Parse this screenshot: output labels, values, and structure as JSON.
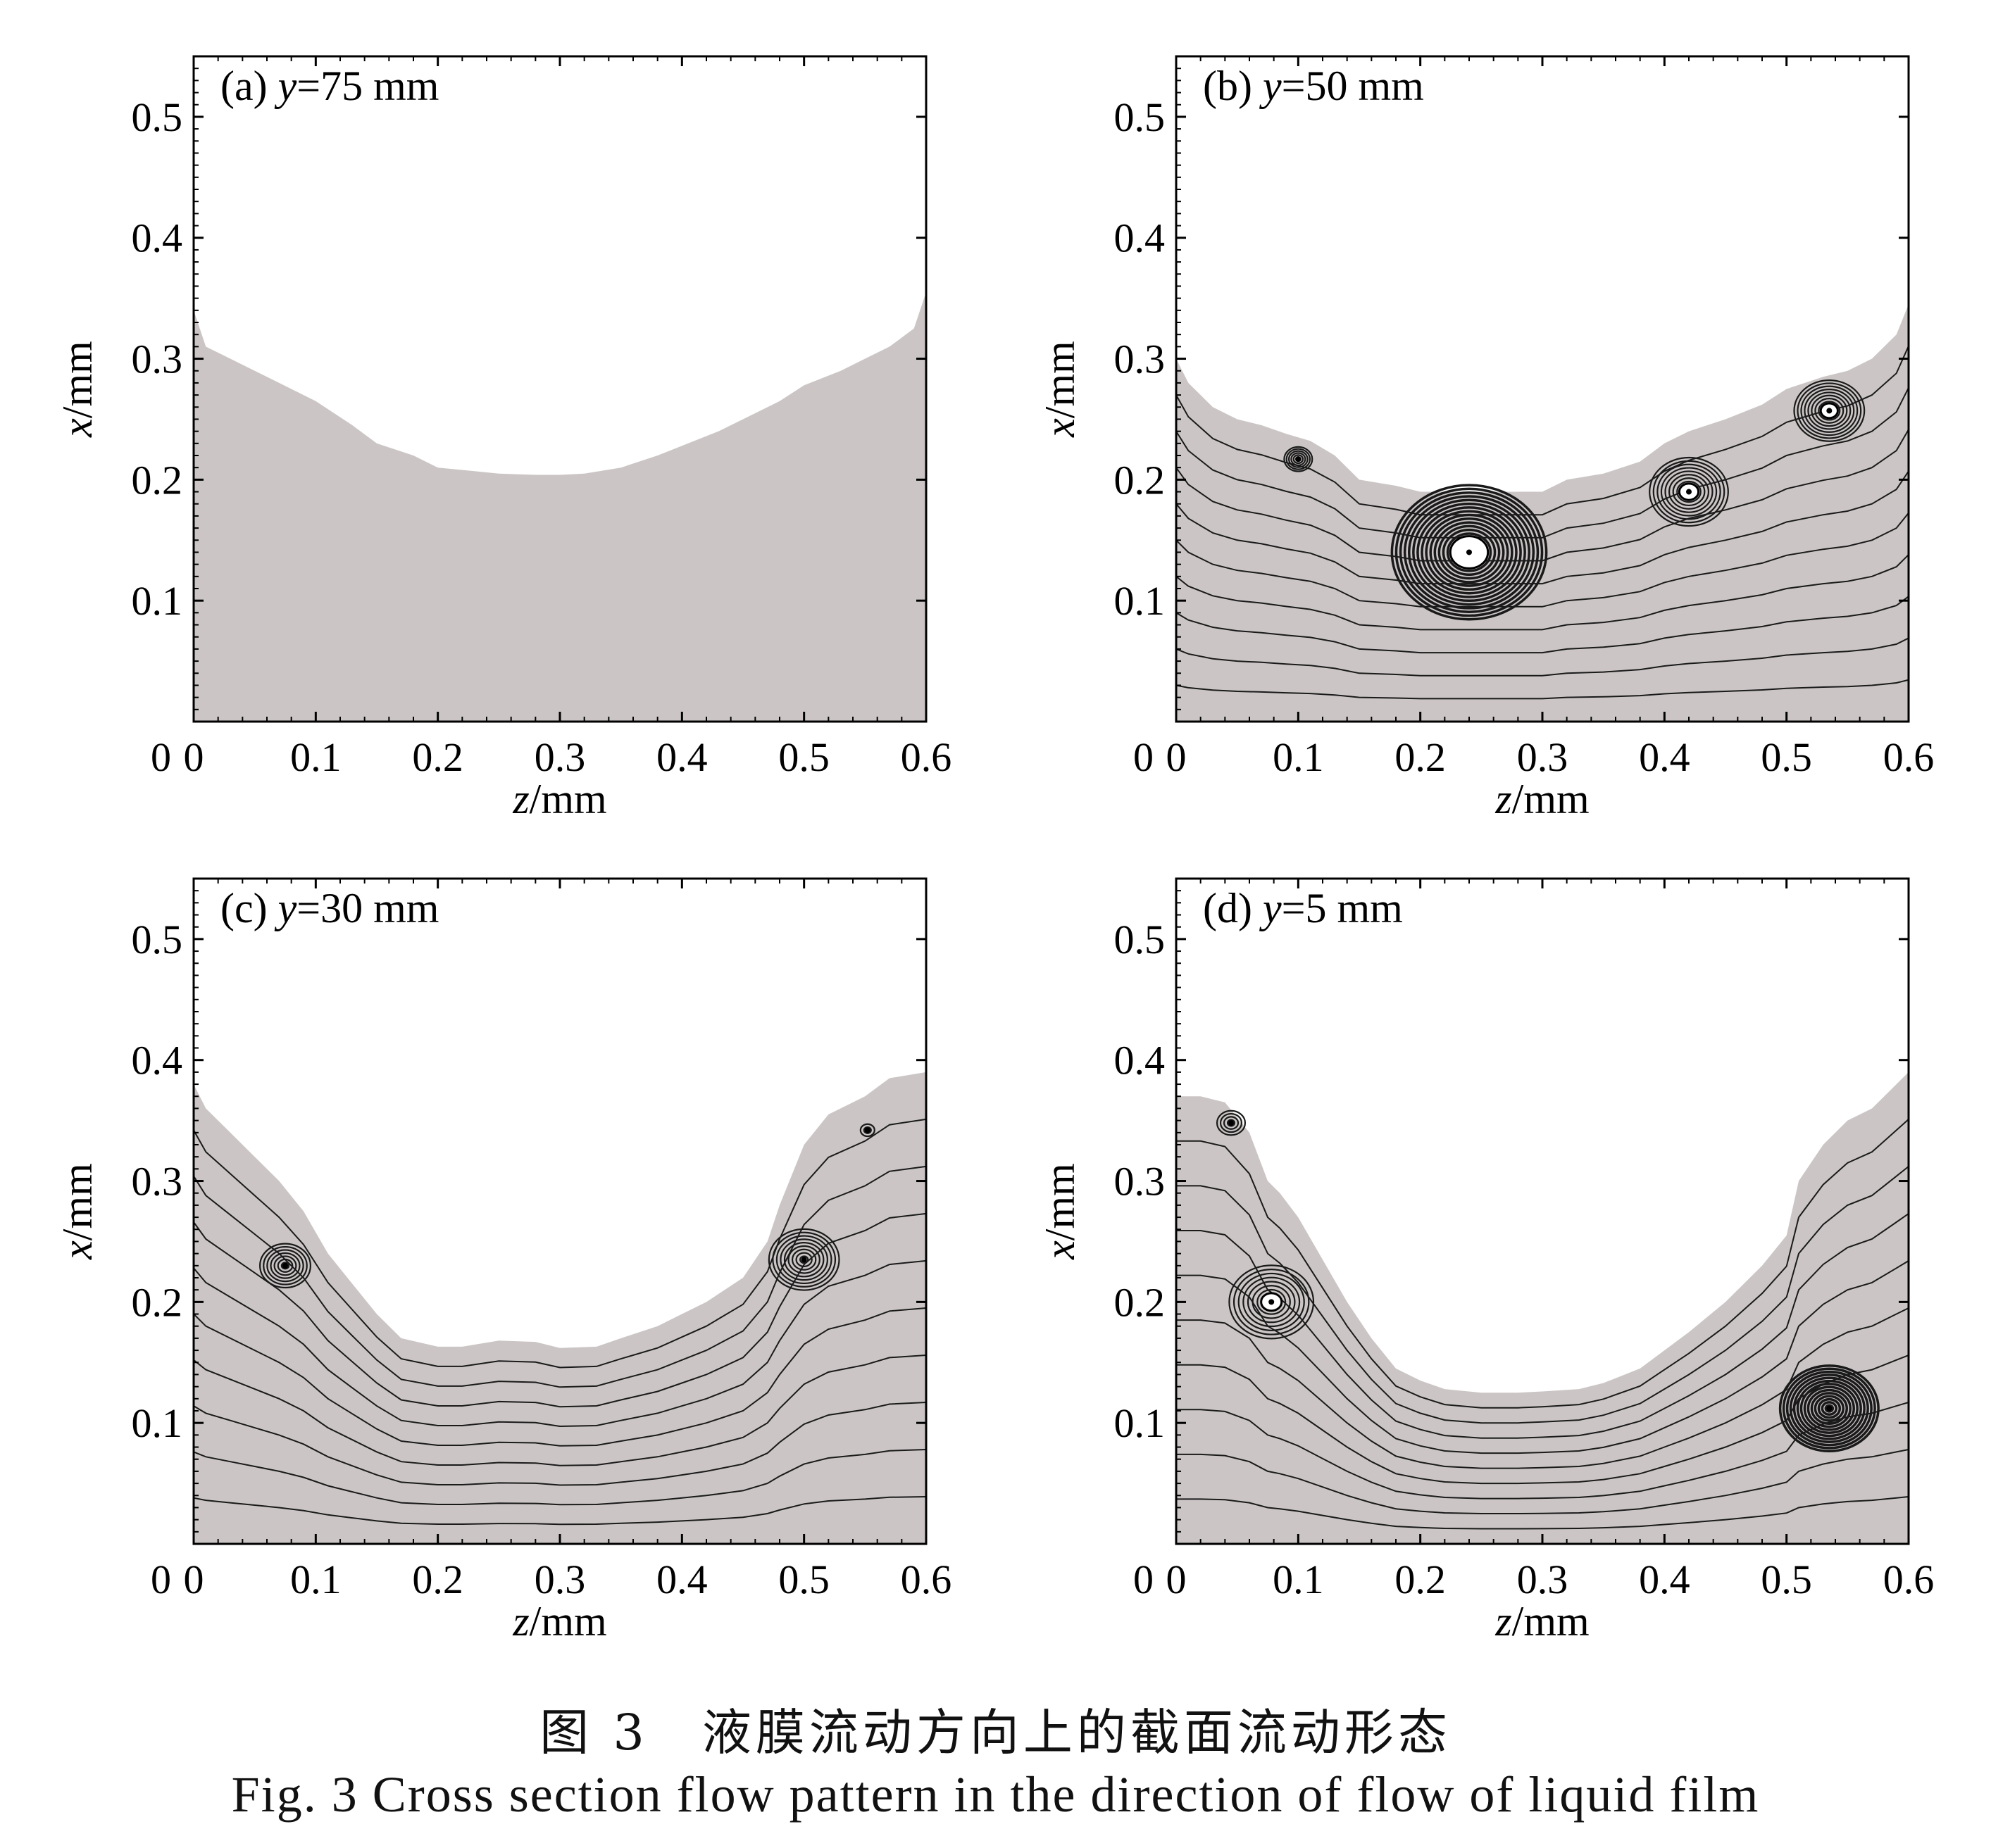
{
  "chart_data": [
    {
      "type": "area",
      "panel": "(a)",
      "title_prefix": "(a)",
      "title_var": "y",
      "title_value": "=75 mm",
      "xlabel_var": "z",
      "xlabel_unit": "/mm",
      "ylabel_var": "x",
      "ylabel_unit": "/mm",
      "xlim": [
        0,
        0.6
      ],
      "ylim": [
        0,
        0.55
      ],
      "xticks": [
        "0",
        "0.1",
        "0.2",
        "0.3",
        "0.4",
        "0.5",
        "0.6"
      ],
      "yticks": [
        "0.1",
        "0.2",
        "0.3",
        "0.4",
        "0.5"
      ],
      "fill_color": "#cbc6c5",
      "liquid_surface": {
        "z": [
          0,
          0.01,
          0.03,
          0.05,
          0.07,
          0.1,
          0.13,
          0.15,
          0.18,
          0.2,
          0.23,
          0.25,
          0.28,
          0.3,
          0.32,
          0.35,
          0.38,
          0.4,
          0.43,
          0.45,
          0.48,
          0.5,
          0.53,
          0.55,
          0.57,
          0.59,
          0.6
        ],
        "x": [
          0.34,
          0.31,
          0.3,
          0.29,
          0.28,
          0.265,
          0.245,
          0.23,
          0.22,
          0.21,
          0.207,
          0.205,
          0.204,
          0.204,
          0.205,
          0.21,
          0.22,
          0.228,
          0.24,
          0.25,
          0.265,
          0.278,
          0.29,
          0.3,
          0.31,
          0.325,
          0.355
        ]
      },
      "vortices": []
    },
    {
      "type": "area",
      "panel": "(b)",
      "title_prefix": "(b)",
      "title_var": "y",
      "title_value": "=50 mm",
      "xlabel_var": "z",
      "xlabel_unit": "/mm",
      "ylabel_var": "x",
      "ylabel_unit": "/mm",
      "xlim": [
        0,
        0.6
      ],
      "ylim": [
        0,
        0.55
      ],
      "xticks": [
        "0",
        "0.1",
        "0.2",
        "0.3",
        "0.4",
        "0.5",
        "0.6"
      ],
      "yticks": [
        "0.1",
        "0.2",
        "0.3",
        "0.4",
        "0.5"
      ],
      "fill_color": "#cbc6c5",
      "liquid_surface": {
        "z": [
          0,
          0.01,
          0.03,
          0.05,
          0.07,
          0.09,
          0.11,
          0.13,
          0.15,
          0.18,
          0.2,
          0.23,
          0.25,
          0.28,
          0.3,
          0.32,
          0.35,
          0.38,
          0.4,
          0.42,
          0.45,
          0.48,
          0.5,
          0.53,
          0.55,
          0.57,
          0.59,
          0.6
        ],
        "x": [
          0.3,
          0.28,
          0.26,
          0.25,
          0.245,
          0.238,
          0.232,
          0.22,
          0.2,
          0.195,
          0.19,
          0.19,
          0.19,
          0.19,
          0.19,
          0.2,
          0.205,
          0.215,
          0.23,
          0.24,
          0.25,
          0.262,
          0.275,
          0.285,
          0.29,
          0.3,
          0.32,
          0.345
        ]
      },
      "vortices": [
        {
          "z": 0.1,
          "x": 0.217,
          "r": 0.01,
          "rings": 6
        },
        {
          "z": 0.24,
          "x": 0.14,
          "r": 0.055,
          "rings": 18,
          "eye": true
        },
        {
          "z": 0.42,
          "x": 0.19,
          "r": 0.028,
          "rings": 10,
          "eye": true
        },
        {
          "z": 0.535,
          "x": 0.257,
          "r": 0.025,
          "rings": 10,
          "eye": true
        }
      ]
    },
    {
      "type": "area",
      "panel": "(c)",
      "title_prefix": "(c)",
      "title_var": "y",
      "title_value": "=30 mm",
      "xlabel_var": "z",
      "xlabel_unit": "/mm",
      "ylabel_var": "x",
      "ylabel_unit": "/mm",
      "xlim": [
        0,
        0.6
      ],
      "ylim": [
        0,
        0.55
      ],
      "xticks": [
        "0",
        "0.1",
        "0.2",
        "0.3",
        "0.4",
        "0.5",
        "0.6"
      ],
      "yticks": [
        "0.1",
        "0.2",
        "0.3",
        "0.4",
        "0.5"
      ],
      "fill_color": "#cbc6c5",
      "liquid_surface": {
        "z": [
          0,
          0.01,
          0.03,
          0.05,
          0.07,
          0.09,
          0.11,
          0.13,
          0.15,
          0.17,
          0.2,
          0.22,
          0.25,
          0.28,
          0.3,
          0.33,
          0.35,
          0.38,
          0.4,
          0.42,
          0.45,
          0.47,
          0.48,
          0.5,
          0.52,
          0.55,
          0.57,
          0.6
        ],
        "x": [
          0.38,
          0.36,
          0.34,
          0.32,
          0.3,
          0.275,
          0.24,
          0.215,
          0.19,
          0.17,
          0.163,
          0.163,
          0.168,
          0.167,
          0.162,
          0.163,
          0.17,
          0.18,
          0.19,
          0.2,
          0.22,
          0.25,
          0.28,
          0.33,
          0.355,
          0.37,
          0.385,
          0.39
        ]
      },
      "vortices": [
        {
          "z": 0.075,
          "x": 0.23,
          "r": 0.018,
          "rings": 7
        },
        {
          "z": 0.5,
          "x": 0.235,
          "r": 0.025,
          "rings": 9
        },
        {
          "z": 0.552,
          "x": 0.342,
          "r": 0.005,
          "rings": 2
        }
      ]
    },
    {
      "type": "area",
      "panel": "(d)",
      "title_prefix": "(d)",
      "title_var": "y",
      "title_value": "=5 mm",
      "xlabel_var": "z",
      "xlabel_unit": "/mm",
      "ylabel_var": "x",
      "ylabel_unit": "/mm",
      "xlim": [
        0,
        0.6
      ],
      "ylim": [
        0,
        0.55
      ],
      "xticks": [
        "0",
        "0.1",
        "0.2",
        "0.3",
        "0.4",
        "0.5",
        "0.6"
      ],
      "yticks": [
        "0.1",
        "0.2",
        "0.3",
        "0.4",
        "0.5"
      ],
      "fill_color": "#cbc6c5",
      "liquid_surface": {
        "z": [
          0,
          0.02,
          0.04,
          0.06,
          0.075,
          0.085,
          0.1,
          0.12,
          0.14,
          0.16,
          0.18,
          0.2,
          0.22,
          0.25,
          0.28,
          0.3,
          0.33,
          0.35,
          0.38,
          0.4,
          0.42,
          0.45,
          0.48,
          0.5,
          0.51,
          0.53,
          0.55,
          0.57,
          0.59,
          0.6
        ],
        "x": [
          0.37,
          0.37,
          0.365,
          0.34,
          0.3,
          0.29,
          0.27,
          0.235,
          0.2,
          0.17,
          0.145,
          0.135,
          0.128,
          0.125,
          0.125,
          0.126,
          0.128,
          0.133,
          0.145,
          0.16,
          0.175,
          0.2,
          0.23,
          0.255,
          0.3,
          0.33,
          0.35,
          0.36,
          0.38,
          0.39
        ]
      },
      "vortices": [
        {
          "z": 0.045,
          "x": 0.348,
          "r": 0.01,
          "rings": 4
        },
        {
          "z": 0.078,
          "x": 0.2,
          "r": 0.03,
          "rings": 9,
          "eye": true
        },
        {
          "z": 0.535,
          "x": 0.112,
          "r": 0.035,
          "rings": 14
        }
      ]
    }
  ],
  "caption": {
    "cn": "图 3　液膜流动方向上的截面流动形态",
    "en": "Fig. 3  Cross section flow pattern in the direction of flow of liquid film"
  }
}
